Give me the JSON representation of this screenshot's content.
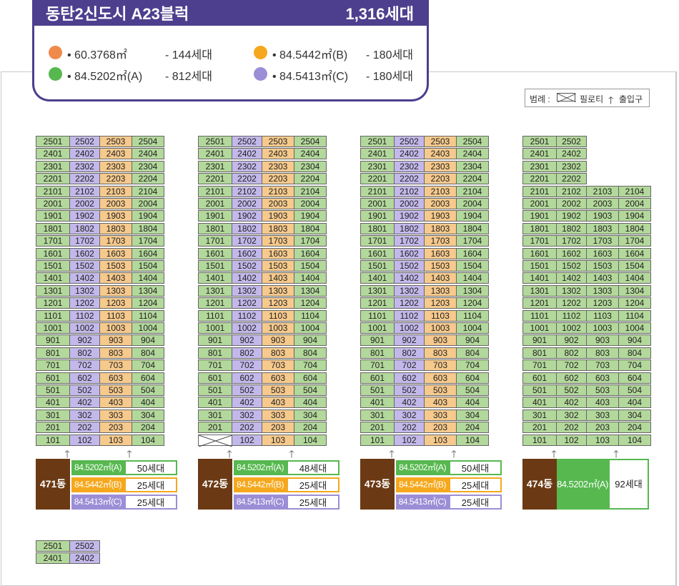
{
  "header": {
    "title": "동탄2신도시 A23블럭",
    "total": "1,316세대",
    "legend": [
      {
        "area": "• 60.3768㎡",
        "count": "- 144세대",
        "color": "#f08a4b"
      },
      {
        "area": "• 84.5442㎡(B)",
        "count": "- 180세대",
        "color": "#f5a81d"
      },
      {
        "area": "• 84.5202㎡(A)",
        "count": "- 812세대",
        "color": "#56b84f"
      },
      {
        "area": "• 84.5413㎡(C)",
        "count": "- 180세대",
        "color": "#9b8ed6"
      }
    ]
  },
  "key": {
    "label": "범례 :",
    "piloti": "필로티",
    "entrance": "출입구"
  },
  "colors": {
    "A": "#b3d89b",
    "B": "#f6c98c",
    "C": "#c3b8ea",
    "label_bg": "#6b3a14"
  },
  "buildings": [
    {
      "name": "471동",
      "floors": 25,
      "piloti": [],
      "lines": 4,
      "types": [
        {
          "area": "84.5202㎡(A)",
          "count": "50세대",
          "color": "#56b84f"
        },
        {
          "area": "84.5442㎡(B)",
          "count": "25세대",
          "color": "#f5a81d"
        },
        {
          "area": "84.5413㎡(C)",
          "count": "25세대",
          "color": "#9b8ed6"
        }
      ]
    },
    {
      "name": "472동",
      "floors": 25,
      "piloti": [
        "101"
      ],
      "lines": 4,
      "types": [
        {
          "area": "84.5202㎡(A)",
          "count": "48세대",
          "color": "#56b84f"
        },
        {
          "area": "84.5442㎡(B)",
          "count": "25세대",
          "color": "#f5a81d"
        },
        {
          "area": "84.5413㎡(C)",
          "count": "25세대",
          "color": "#9b8ed6"
        }
      ]
    },
    {
      "name": "473동",
      "floors": 25,
      "piloti": [],
      "lines": 4,
      "types": [
        {
          "area": "84.5202㎡(A)",
          "count": "50세대",
          "color": "#56b84f"
        },
        {
          "area": "84.5442㎡(B)",
          "count": "25세대",
          "color": "#f5a81d"
        },
        {
          "area": "84.5413㎡(C)",
          "count": "25세대",
          "color": "#9b8ed6"
        }
      ]
    },
    {
      "name": "474동",
      "floors": 25,
      "piloti": [],
      "lines": 4,
      "upper_lines": 2,
      "upper_from_floor": 22,
      "types": [
        {
          "area": "84.5202㎡(A)",
          "count": "92세대",
          "color": "#56b84f"
        }
      ]
    }
  ],
  "partial_building": {
    "rows": [
      [
        "2501",
        "2502"
      ],
      [
        "2401",
        "2402"
      ]
    ]
  }
}
